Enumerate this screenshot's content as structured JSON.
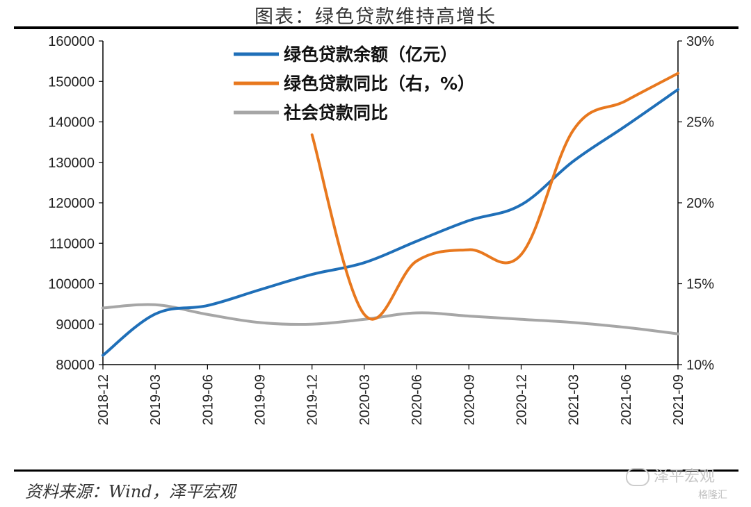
{
  "title": "图表：绿色贷款维持高增长",
  "source": "资料来源：Wind，泽平宏观",
  "watermark": "泽平宏观",
  "watermark_secondary": "格隆汇",
  "chart_data": {
    "type": "line",
    "x": [
      "2018-12",
      "2019-03",
      "2019-06",
      "2019-09",
      "2019-12",
      "2020-03",
      "2020-06",
      "2020-09",
      "2020-12",
      "2021-03",
      "2021-06",
      "2021-09"
    ],
    "y_left": {
      "ylim": [
        80000,
        160000
      ],
      "ticks": [
        "80000",
        "90000",
        "100000",
        "110000",
        "120000",
        "130000",
        "140000",
        "150000",
        "160000"
      ]
    },
    "y_right": {
      "ylim": [
        10,
        30
      ],
      "ticks": [
        "10%",
        "15%",
        "20%",
        "25%",
        "30%"
      ]
    },
    "series": [
      {
        "name": "绿色贷款余额（亿元）",
        "axis": "left",
        "color": "#1f6fb8",
        "values": [
          82300,
          92500,
          94600,
          98500,
          102300,
          105200,
          110500,
          115600,
          119500,
          130300,
          139000,
          148000
        ]
      },
      {
        "name": "绿色贷款同比（右，%）",
        "axis": "right",
        "color": "#e8781e",
        "values": [
          null,
          null,
          null,
          null,
          24.2,
          13.1,
          16.4,
          17.1,
          16.8,
          24.5,
          26.3,
          28.0
        ]
      },
      {
        "name": "社会贷款同比",
        "axis": "right",
        "color": "#a6a6a6",
        "values": [
          13.5,
          13.7,
          13.1,
          12.6,
          12.5,
          12.8,
          13.2,
          13.0,
          12.8,
          12.6,
          12.3,
          11.9
        ]
      }
    ],
    "legend_position": "top-center",
    "grid": false
  }
}
